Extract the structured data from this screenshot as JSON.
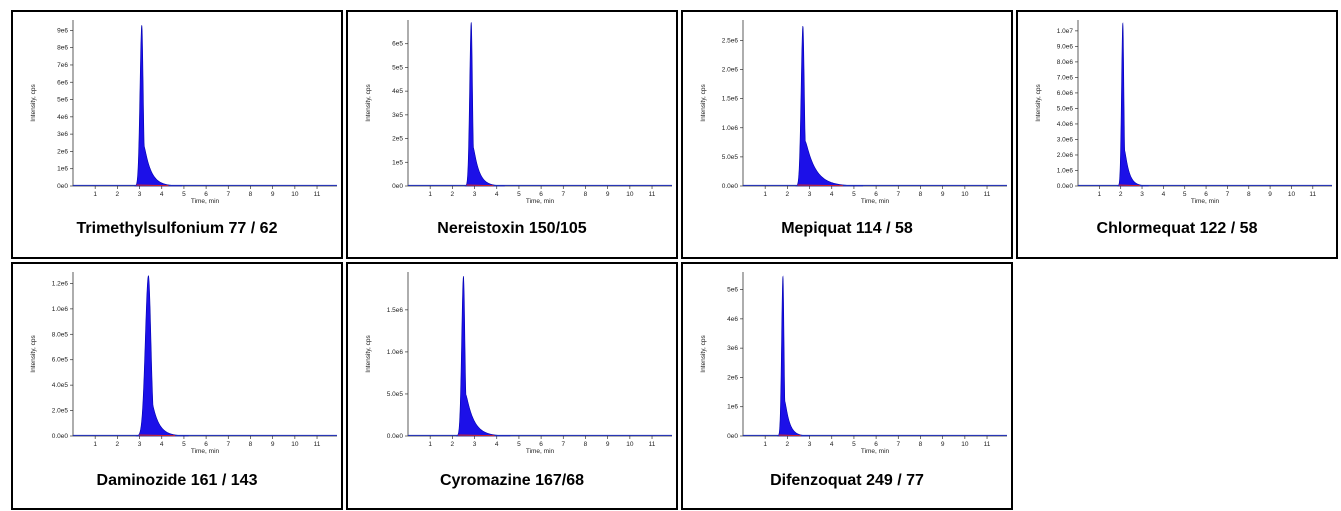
{
  "chart_data": [
    {
      "type": "area",
      "caption": "Trimethylsulfonium 77 / 62",
      "xlabel": "Time, min",
      "ylabel": "Intensity, cps",
      "xlim": [
        0,
        11.9
      ],
      "xticks": [
        1,
        2,
        3,
        4,
        5,
        6,
        7,
        8,
        9,
        10,
        11
      ],
      "yticks": [
        0,
        1000000,
        2000000,
        3000000,
        4000000,
        5000000,
        6000000,
        7000000,
        8000000,
        9000000
      ],
      "ytick_labels": [
        "0e0",
        "1e6",
        "2e6",
        "3e6",
        "4e6",
        "5e6",
        "6e6",
        "7e6",
        "8e6",
        "9e6"
      ],
      "ylim": [
        0,
        9600000
      ],
      "peak": {
        "rt": 3.1,
        "height": 9300000,
        "width_left": 0.08,
        "tail": 0.3
      }
    },
    {
      "type": "area",
      "caption": "Nereistoxin 150/105",
      "xlabel": "Time, min",
      "ylabel": "Intensity, cps",
      "xlim": [
        0,
        11.9
      ],
      "xticks": [
        1,
        2,
        3,
        4,
        5,
        6,
        7,
        8,
        9,
        10,
        11
      ],
      "yticks": [
        0,
        100000,
        200000,
        300000,
        400000,
        500000,
        600000
      ],
      "ytick_labels": [
        "0e0",
        "1e5",
        "2e5",
        "3e5",
        "4e5",
        "5e5",
        "6e5"
      ],
      "ylim": [
        0,
        700000
      ],
      "peak": {
        "rt": 2.85,
        "height": 690000,
        "width_left": 0.07,
        "tail": 0.25
      }
    },
    {
      "type": "area",
      "caption": "Mepiquat 114 / 58",
      "xlabel": "Time, min",
      "ylabel": "Intensity, cps",
      "xlim": [
        0,
        11.9
      ],
      "xticks": [
        1,
        2,
        3,
        4,
        5,
        6,
        7,
        8,
        9,
        10,
        11
      ],
      "yticks": [
        0,
        500000,
        1000000,
        1500000,
        2000000,
        2500000
      ],
      "ytick_labels": [
        "0.0e0",
        "5.0e5",
        "1.0e6",
        "1.5e6",
        "2.0e6",
        "2.5e6"
      ],
      "ylim": [
        0,
        2850000
      ],
      "peak": {
        "rt": 2.7,
        "height": 2750000,
        "width_left": 0.08,
        "tail": 0.45
      }
    },
    {
      "type": "area",
      "caption": "Chlormequat 122 / 58",
      "xlabel": "Time, min",
      "ylabel": "Intensity, cps",
      "xlim": [
        0,
        11.9
      ],
      "xticks": [
        1,
        2,
        3,
        4,
        5,
        6,
        7,
        8,
        9,
        10,
        11
      ],
      "yticks": [
        0,
        1000000,
        2000000,
        3000000,
        4000000,
        5000000,
        6000000,
        7000000,
        8000000,
        9000000,
        10000000
      ],
      "ytick_labels": [
        "0.0e0",
        "1.0e6",
        "2.0e6",
        "3.0e6",
        "4.0e6",
        "5.0e6",
        "6.0e6",
        "7.0e6",
        "8.0e6",
        "9.0e6",
        "1.0e7"
      ],
      "ylim": [
        0,
        10700000
      ],
      "peak": {
        "rt": 2.1,
        "height": 10500000,
        "width_left": 0.06,
        "tail": 0.2
      }
    },
    {
      "type": "area",
      "caption": "Daminozide 161 / 143",
      "xlabel": "Time, min",
      "ylabel": "Intensity, cps",
      "xlim": [
        0,
        11.9
      ],
      "xticks": [
        1,
        2,
        3,
        4,
        5,
        6,
        7,
        8,
        9,
        10,
        11
      ],
      "yticks": [
        0,
        200000,
        400000,
        600000,
        800000,
        1000000,
        1200000
      ],
      "ytick_labels": [
        "0.0e0",
        "2.0e5",
        "4.0e5",
        "6.0e5",
        "8.0e5",
        "1.0e6",
        "1.2e6"
      ],
      "ylim": [
        0,
        1290000
      ],
      "peak": {
        "rt": 3.4,
        "height": 1260000,
        "width_left": 0.14,
        "tail": 0.3
      }
    },
    {
      "type": "area",
      "caption": "Cyromazine 167/68",
      "xlabel": "Time, min",
      "ylabel": "Intensity, cps",
      "xlim": [
        0,
        11.9
      ],
      "xticks": [
        1,
        2,
        3,
        4,
        5,
        6,
        7,
        8,
        9,
        10,
        11
      ],
      "yticks": [
        0,
        500000,
        1000000,
        1500000
      ],
      "ytick_labels": [
        "0.0e0",
        "5.0e5",
        "1.0e6",
        "1.5e6"
      ],
      "ylim": [
        0,
        1950000
      ],
      "peak": {
        "rt": 2.5,
        "height": 1900000,
        "width_left": 0.08,
        "tail": 0.35
      }
    },
    {
      "type": "area",
      "caption": "Difenzoquat 249 / 77",
      "xlabel": "Time, min",
      "ylabel": "Intensity, cps",
      "xlim": [
        0,
        11.9
      ],
      "xticks": [
        1,
        2,
        3,
        4,
        5,
        6,
        7,
        8,
        9,
        10,
        11
      ],
      "yticks": [
        0,
        1000000,
        2000000,
        3000000,
        4000000,
        5000000
      ],
      "ytick_labels": [
        "0e0",
        "1e6",
        "2e6",
        "3e6",
        "4e6",
        "5e6"
      ],
      "ylim": [
        0,
        5600000
      ],
      "peak": {
        "rt": 1.8,
        "height": 5450000,
        "width_left": 0.06,
        "tail": 0.2
      }
    }
  ],
  "colors": {
    "fill": "#1c10e8",
    "edge": "#0000b0",
    "baseline": "#2030c0",
    "integration": "#e02020"
  }
}
